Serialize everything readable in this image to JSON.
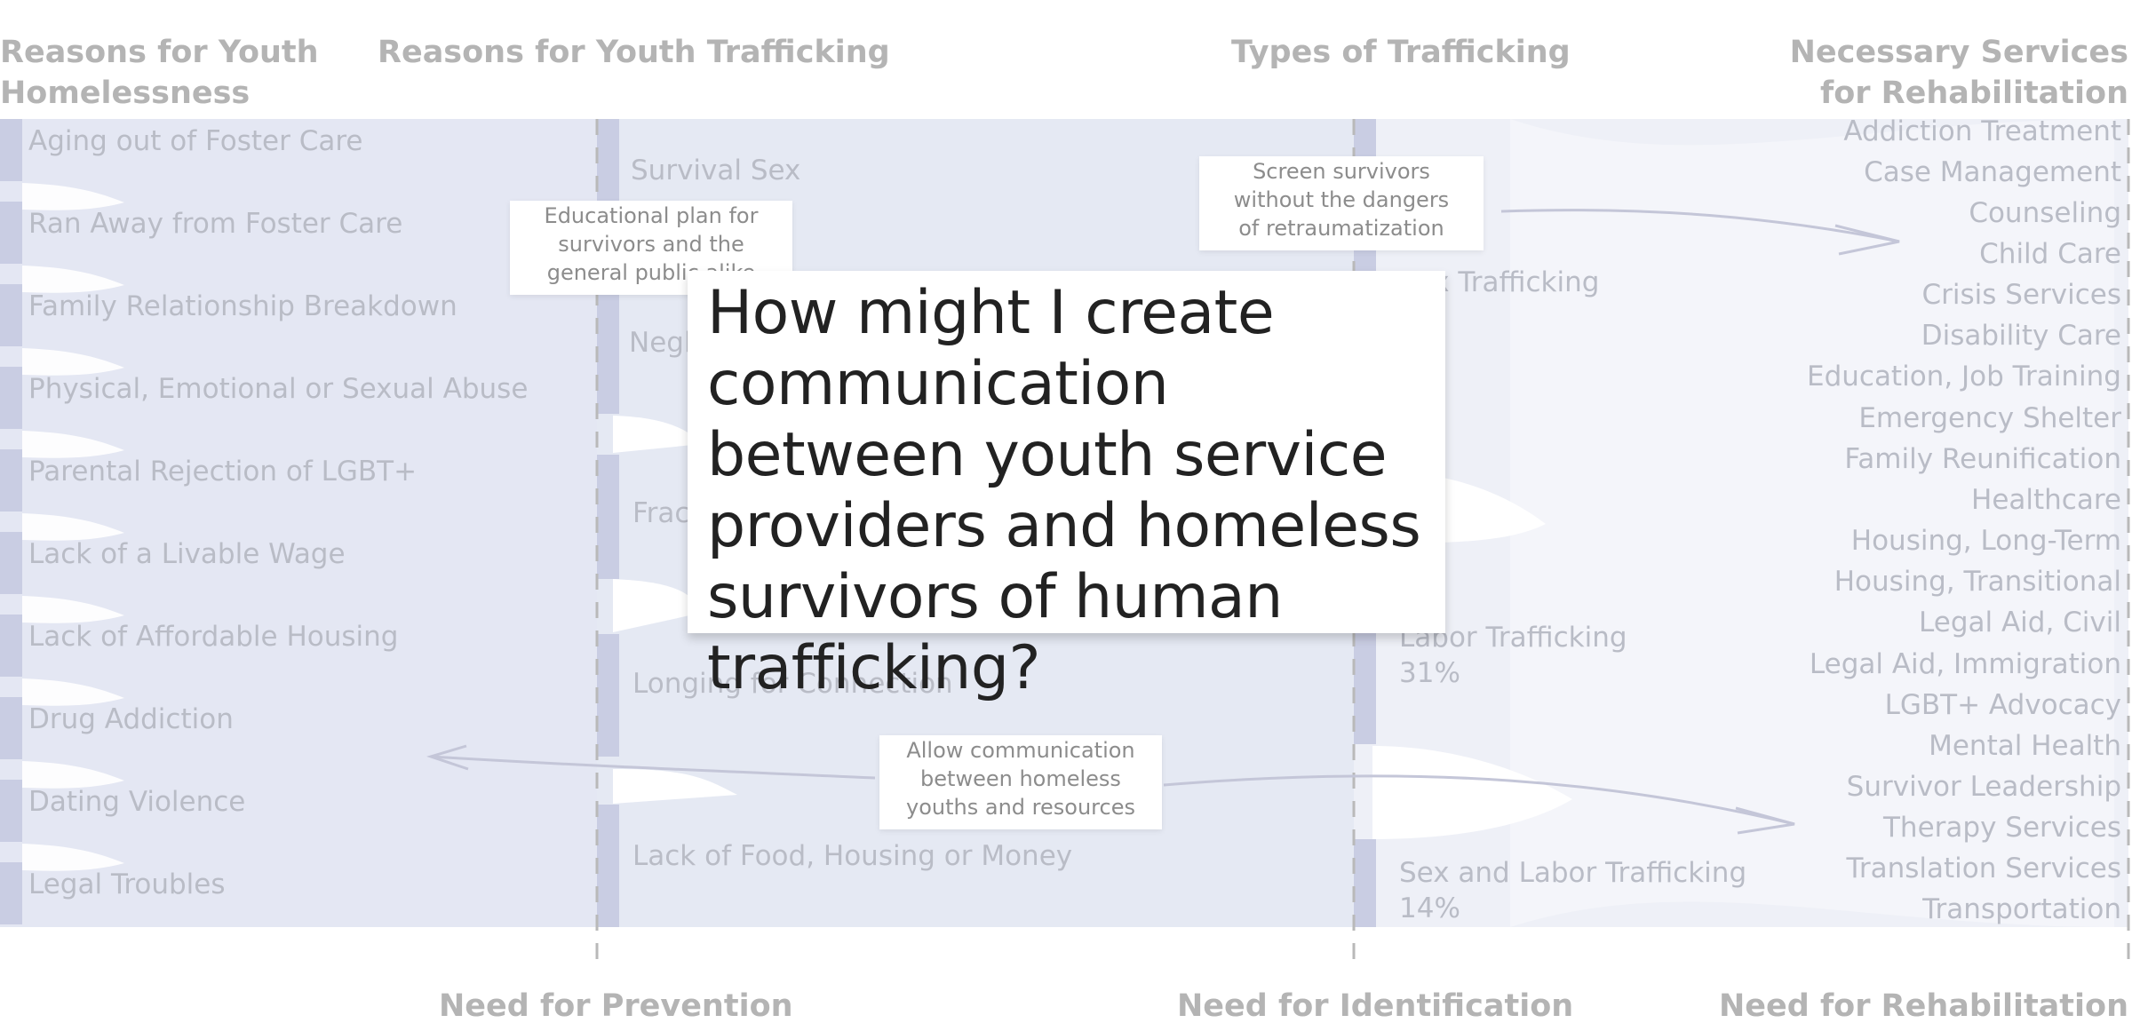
{
  "columns": {
    "homelessness_title": "Reasons for Youth Homelessness",
    "trafficking_reasons_title": "Reasons for Youth Trafficking",
    "types_title": "Types of Trafficking",
    "services_title": "Necessary Services for Rehabilitation"
  },
  "footers": {
    "prevention": "Need for Prevention",
    "identification": "Need for Identification",
    "rehabilitation": "Need for Rehabilitation"
  },
  "homelessness_reasons": [
    "Aging out of Foster Care",
    "Ran Away from Foster Care",
    "Family Relationship Breakdown",
    "Physical, Emotional or Sexual Abuse",
    "Parental Rejection of LGBT+",
    "Lack of a Livable Wage",
    "Lack of Affordable Housing",
    "Drug Addiction",
    "Dating Violence",
    "Legal Troubles"
  ],
  "trafficking_reasons": [
    "Survival Sex",
    "Negl",
    "Frac",
    "Longing for Connection",
    "Lack of Food, Housing or Money"
  ],
  "trafficking_types": [
    {
      "label": "Sex Trafficking",
      "pct": "%"
    },
    {
      "label": "Labor Trafficking",
      "pct": "31%"
    },
    {
      "label": "Sex and Labor Trafficking",
      "pct": "14%"
    }
  ],
  "services": [
    "Addiction Treatment",
    "Case Management",
    "Counseling",
    "Child Care",
    "Crisis Services",
    "Disability Care",
    "Education, Job Training",
    "Emergency Shelter",
    "Family Reunification",
    "Healthcare",
    "Housing, Long-Term",
    "Housing, Transitional",
    "Legal Aid, Civil",
    "Legal Aid, Immigration",
    "LGBT+ Advocacy",
    "Mental Health",
    "Survivor Leadership",
    "Therapy Services",
    "Translation Services",
    "Transportation"
  ],
  "notes": {
    "education": "Educational plan for survivors and the general public alike",
    "screening": "Screen survivors without the dangers of retraumatization",
    "communication": "Allow communication between homeless youths and resources"
  },
  "question": "How might I create communication between youth service providers and homeless survivors of human trafficking?",
  "colors": {
    "node_bar": "#c9cde3",
    "band_fill": "#dfe3f1",
    "band_light": "#eef0f7",
    "axis": "#b9b9b9",
    "arrow": "#c4c6d8",
    "label": "#b9bcc6",
    "title": "#b4b4b4"
  }
}
